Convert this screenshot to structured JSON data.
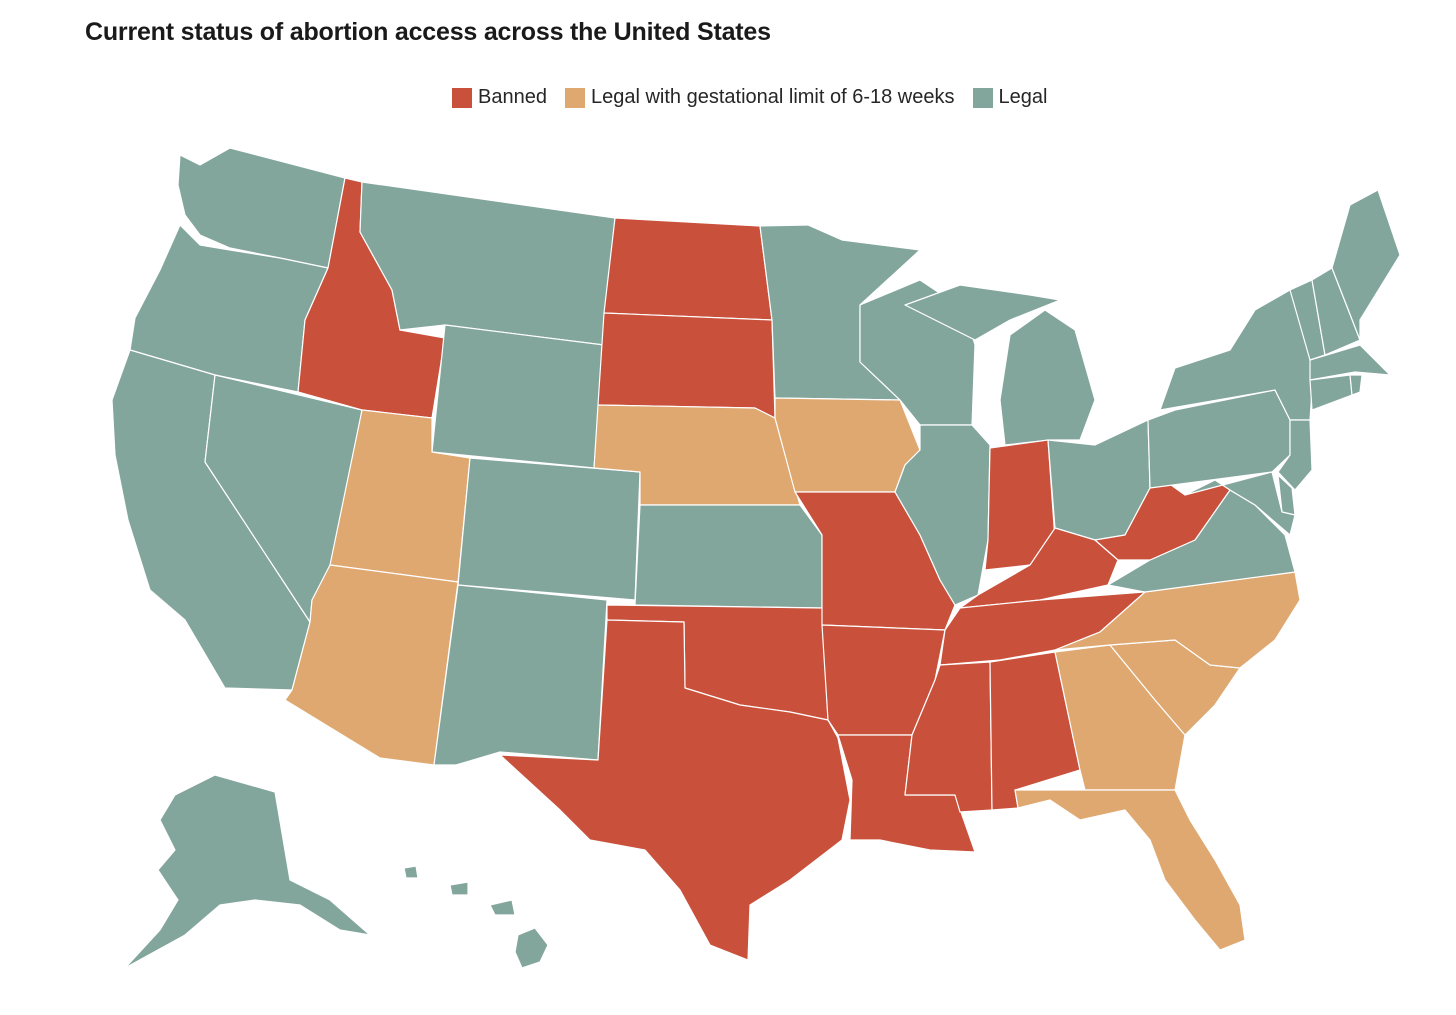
{
  "title": "Current status of abortion access across the United States",
  "legend": [
    {
      "label": "Banned",
      "color": "#c9503a"
    },
    {
      "label": "Legal with gestational limit of 6-18 weeks",
      "color": "#dea870"
    },
    {
      "label": "Legal",
      "color": "#82a59c"
    }
  ],
  "status_colors": {
    "banned": "#c9503a",
    "limit": "#dea870",
    "legal": "#82a59c"
  },
  "states": [
    {
      "abbr": "WA",
      "status": "legal"
    },
    {
      "abbr": "OR",
      "status": "legal"
    },
    {
      "abbr": "CA",
      "status": "legal"
    },
    {
      "abbr": "NV",
      "status": "legal"
    },
    {
      "abbr": "ID",
      "status": "banned"
    },
    {
      "abbr": "MT",
      "status": "legal"
    },
    {
      "abbr": "WY",
      "status": "legal"
    },
    {
      "abbr": "UT",
      "status": "limit"
    },
    {
      "abbr": "AZ",
      "status": "limit"
    },
    {
      "abbr": "CO",
      "status": "legal"
    },
    {
      "abbr": "NM",
      "status": "legal"
    },
    {
      "abbr": "ND",
      "status": "banned"
    },
    {
      "abbr": "SD",
      "status": "banned"
    },
    {
      "abbr": "NE",
      "status": "limit"
    },
    {
      "abbr": "KS",
      "status": "legal"
    },
    {
      "abbr": "OK",
      "status": "banned"
    },
    {
      "abbr": "TX",
      "status": "banned"
    },
    {
      "abbr": "MN",
      "status": "legal"
    },
    {
      "abbr": "IA",
      "status": "limit"
    },
    {
      "abbr": "MO",
      "status": "banned"
    },
    {
      "abbr": "AR",
      "status": "banned"
    },
    {
      "abbr": "LA",
      "status": "banned"
    },
    {
      "abbr": "WI",
      "status": "legal"
    },
    {
      "abbr": "IL",
      "status": "legal"
    },
    {
      "abbr": "MI",
      "status": "legal"
    },
    {
      "abbr": "IN",
      "status": "banned"
    },
    {
      "abbr": "OH",
      "status": "legal"
    },
    {
      "abbr": "KY",
      "status": "banned"
    },
    {
      "abbr": "TN",
      "status": "banned"
    },
    {
      "abbr": "MS",
      "status": "banned"
    },
    {
      "abbr": "AL",
      "status": "banned"
    },
    {
      "abbr": "GA",
      "status": "limit"
    },
    {
      "abbr": "FL",
      "status": "limit"
    },
    {
      "abbr": "SC",
      "status": "limit"
    },
    {
      "abbr": "NC",
      "status": "limit"
    },
    {
      "abbr": "VA",
      "status": "legal"
    },
    {
      "abbr": "WV",
      "status": "banned"
    },
    {
      "abbr": "PA",
      "status": "legal"
    },
    {
      "abbr": "NY",
      "status": "legal"
    },
    {
      "abbr": "VT",
      "status": "legal"
    },
    {
      "abbr": "NH",
      "status": "legal"
    },
    {
      "abbr": "ME",
      "status": "legal"
    },
    {
      "abbr": "MA",
      "status": "legal"
    },
    {
      "abbr": "CT",
      "status": "legal"
    },
    {
      "abbr": "RI",
      "status": "legal"
    },
    {
      "abbr": "NJ",
      "status": "legal"
    },
    {
      "abbr": "DE",
      "status": "legal"
    },
    {
      "abbr": "MD",
      "status": "legal"
    },
    {
      "abbr": "AK",
      "status": "legal"
    },
    {
      "abbr": "HI",
      "status": "legal"
    }
  ]
}
